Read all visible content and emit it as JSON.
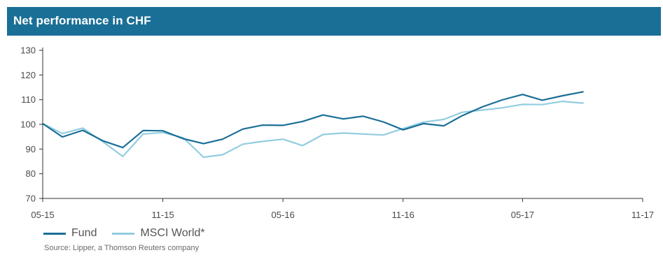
{
  "header": {
    "title": "Net performance in CHF"
  },
  "chart_data": {
    "type": "line",
    "title": "Net performance in CHF",
    "xlabel": "",
    "ylabel": "",
    "ylim": [
      70,
      130
    ],
    "yticks": [
      70,
      80,
      90,
      100,
      110,
      120,
      130
    ],
    "xlim": [
      "2015-05-31",
      "2017-11-30"
    ],
    "xticks": [
      {
        "label": "05-15",
        "date": "2015-05-31"
      },
      {
        "label": "11-15",
        "date": "2015-11-30"
      },
      {
        "label": "05-16",
        "date": "2016-05-31"
      },
      {
        "label": "11-16",
        "date": "2016-11-30"
      },
      {
        "label": "05-17",
        "date": "2017-05-31"
      },
      {
        "label": "11-17",
        "date": "2017-11-30"
      }
    ],
    "x": [
      "2015-05-31",
      "2015-06-30",
      "2015-07-31",
      "2015-08-31",
      "2015-09-30",
      "2015-10-31",
      "2015-11-30",
      "2015-12-31",
      "2016-01-31",
      "2016-02-29",
      "2016-03-31",
      "2016-04-30",
      "2016-05-31",
      "2016-06-30",
      "2016-07-31",
      "2016-08-31",
      "2016-09-30",
      "2016-10-31",
      "2016-11-30",
      "2016-12-31",
      "2017-01-31",
      "2017-02-28",
      "2017-03-31",
      "2017-04-30",
      "2017-05-31",
      "2017-06-30",
      "2017-07-31",
      "2017-08-31"
    ],
    "series": [
      {
        "name": "Fund",
        "color": "#1a6f97",
        "values": [
          100.3,
          94.9,
          97.6,
          93.3,
          90.6,
          97.5,
          97.4,
          94.2,
          92.2,
          94.0,
          98.1,
          99.7,
          99.6,
          101.2,
          103.8,
          102.2,
          103.3,
          101.0,
          97.8,
          100.3,
          99.4,
          103.5,
          107.1,
          109.9,
          112.1,
          109.8,
          111.6,
          113.2
        ]
      },
      {
        "name": "MSCI World*",
        "color": "#92cde0",
        "values": [
          100.3,
          96.3,
          98.5,
          92.9,
          87.0,
          96.1,
          96.7,
          94.6,
          86.7,
          87.7,
          92.0,
          93.1,
          94.0,
          91.4,
          95.9,
          96.5,
          96.1,
          95.7,
          98.3,
          100.9,
          102.0,
          104.9,
          105.8,
          106.7,
          108.1,
          108.0,
          109.3,
          108.6
        ]
      }
    ],
    "grid": false,
    "legend_position": "bottom-left",
    "source": "Source: Lipper, a Thomson Reuters company"
  }
}
